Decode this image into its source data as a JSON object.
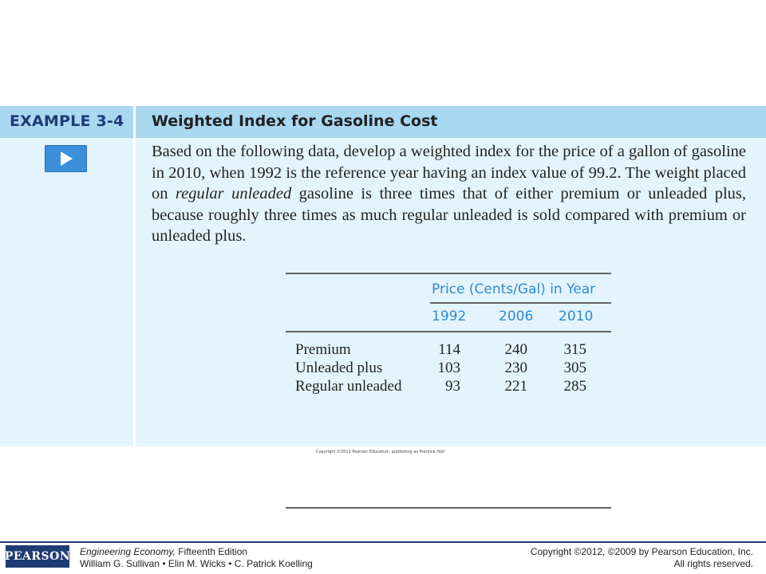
{
  "example": {
    "tag": "EXAMPLE 3-4",
    "title": "Weighted Index for Gasoline Cost",
    "play_icon": "play-icon",
    "text_part1": "Based on the following data, develop a weighted index for the price of a gallon of gasoline in 2010, when 1992 is the reference year having an index value of 99.2. The weight placed on ",
    "text_italic": "regular unleaded",
    "text_part2": " gasoline is three times that of either premium or unleaded plus, because roughly three times as much regular unleaded is sold compared with premium or unleaded plus."
  },
  "table": {
    "group_header": "Price (Cents/Gal) in Year",
    "years": [
      "1992",
      "2006",
      "2010"
    ],
    "rows": [
      {
        "label": "Premium",
        "values": [
          "114",
          "240",
          "315"
        ]
      },
      {
        "label": "Unleaded plus",
        "values": [
          "103",
          "230",
          "305"
        ]
      },
      {
        "label": "Regular unleaded",
        "values": [
          "93",
          "221",
          "285"
        ]
      }
    ]
  },
  "image_credit": "Copyright ©2012 Pearson Education, publishing as Prentice Hall",
  "footer": {
    "logo_text": "PEARSON",
    "book_title": "Engineering Economy,",
    "edition": " Fifteenth Edition",
    "authors": "William G. Sullivan • Elin M. Wicks • C. Patrick Koelling",
    "copyright_line1": "Copyright ©2012, ©2009 by Pearson Education, Inc.",
    "copyright_line2": "All rights reserved."
  },
  "colors": {
    "header_band": "#a9d8f1",
    "panel_bg": "#e4f4fc",
    "play_button": "#3b8fdc",
    "table_header_text": "#2c8bd2",
    "brand_navy": "#1f3b73"
  }
}
